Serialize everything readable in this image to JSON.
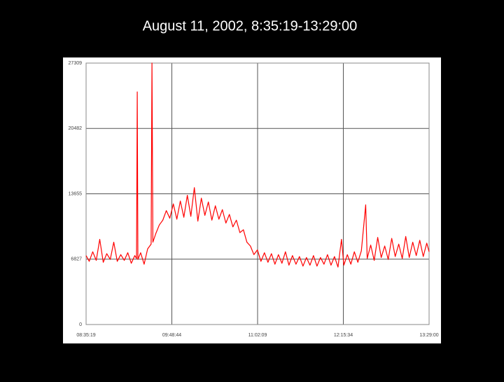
{
  "chart_data": {
    "type": "line",
    "title": "August 11, 2002, 8:35:19-13:29:00",
    "x": [
      "08:35:19",
      "08:38:00",
      "08:41:00",
      "08:44:00",
      "08:47:00",
      "08:50:00",
      "08:53:00",
      "08:56:00",
      "08:59:00",
      "09:02:00",
      "09:05:00",
      "09:08:00",
      "09:11:00",
      "09:14:00",
      "09:17:00",
      "09:18:30",
      "09:19:07",
      "09:19:40",
      "09:22:00",
      "09:25:00",
      "09:28:00",
      "09:31:00",
      "09:31:43",
      "09:32:30",
      "09:35:00",
      "09:38:00",
      "09:41:00",
      "09:44:00",
      "09:47:00",
      "09:50:00",
      "09:53:00",
      "09:56:00",
      "09:59:00",
      "10:02:00",
      "10:05:00",
      "10:08:00",
      "10:11:00",
      "10:14:00",
      "10:17:00",
      "10:20:00",
      "10:23:00",
      "10:26:00",
      "10:29:00",
      "10:32:00",
      "10:35:00",
      "10:38:00",
      "10:41:00",
      "10:44:00",
      "10:47:00",
      "10:50:00",
      "10:53:00",
      "10:56:00",
      "10:59:00",
      "11:02:00",
      "11:05:00",
      "11:08:00",
      "11:11:00",
      "11:14:00",
      "11:17:00",
      "11:20:00",
      "11:23:00",
      "11:26:00",
      "11:29:00",
      "11:32:00",
      "11:35:00",
      "11:38:00",
      "11:41:00",
      "11:44:00",
      "11:47:00",
      "11:50:00",
      "11:53:00",
      "11:56:00",
      "11:59:00",
      "12:02:00",
      "12:05:00",
      "12:08:00",
      "12:11:00",
      "12:14:00",
      "12:16:00",
      "12:19:00",
      "12:22:00",
      "12:25:00",
      "12:28:00",
      "12:31:00",
      "12:34:43",
      "12:36:00",
      "12:39:00",
      "12:42:00",
      "12:45:00",
      "12:48:00",
      "12:51:00",
      "12:54:00",
      "12:57:00",
      "13:00:00",
      "13:03:00",
      "13:06:00",
      "13:09:00",
      "13:12:00",
      "13:15:00",
      "13:18:00",
      "13:21:00",
      "13:24:00",
      "13:27:00",
      "13:29:00"
    ],
    "values": [
      7200,
      6600,
      7600,
      6700,
      8900,
      6500,
      7400,
      6800,
      8600,
      6600,
      7300,
      6700,
      7500,
      6400,
      7200,
      6900,
      24300,
      6800,
      7500,
      6300,
      7900,
      8400,
      27309,
      8600,
      9500,
      10400,
      10900,
      11900,
      11100,
      12600,
      11000,
      12900,
      11200,
      13500,
      11300,
      14300,
      10800,
      13200,
      11400,
      12800,
      10900,
      12400,
      11000,
      12000,
      10600,
      11500,
      10200,
      10900,
      9600,
      9900,
      8600,
      8200,
      7300,
      7800,
      6600,
      7500,
      6500,
      7400,
      6300,
      7300,
      6400,
      7600,
      6200,
      7200,
      6300,
      7100,
      6100,
      7000,
      6200,
      7200,
      6100,
      7000,
      6300,
      7300,
      6200,
      7100,
      6000,
      8900,
      6200,
      7300,
      6300,
      7600,
      6500,
      7700,
      12500,
      6900,
      8300,
      6700,
      9100,
      7000,
      8200,
      6800,
      9000,
      7100,
      8400,
      6900,
      9200,
      7000,
      8600,
      7200,
      8800,
      7100,
      8500,
      7600
    ],
    "color": "#ff0000",
    "xlim": [
      "08:35:19",
      "13:29:00"
    ],
    "xticks": [
      "08:35:19",
      "09:48:44",
      "11:02:09",
      "12:15:34",
      "13:29:00"
    ],
    "ylim": [
      0,
      27309
    ],
    "yticks": [
      0,
      6827,
      13655,
      20482,
      27309
    ],
    "grid": true
  }
}
